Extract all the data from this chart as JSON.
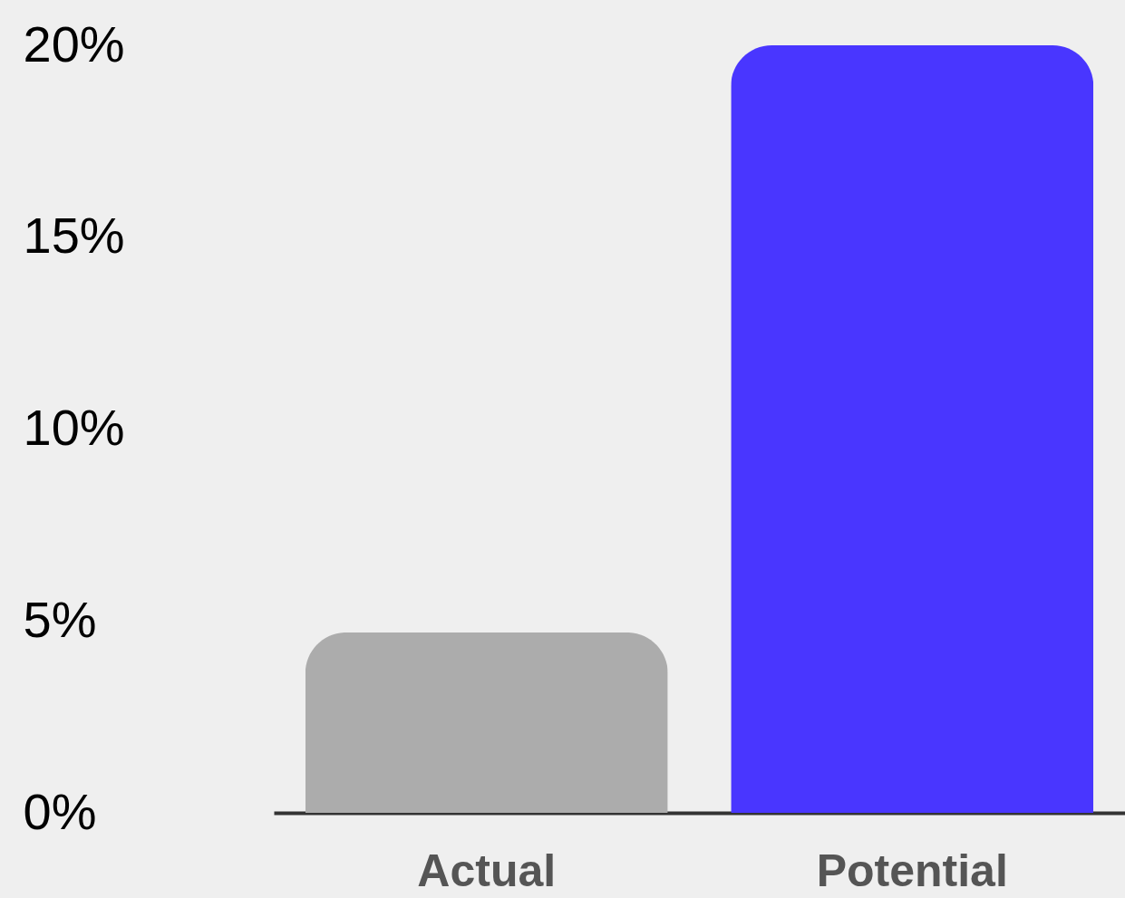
{
  "chart_data": {
    "type": "bar",
    "categories": [
      "Actual",
      "Potential"
    ],
    "values": [
      4.7,
      20
    ],
    "colors": [
      "#acacac",
      "#4936ff"
    ],
    "ylim": [
      0,
      20
    ],
    "yticks": [
      {
        "value": 0,
        "label": "0%"
      },
      {
        "value": 5,
        "label": "5%"
      },
      {
        "value": 10,
        "label": "10%"
      },
      {
        "value": 15,
        "label": "15%"
      },
      {
        "value": 20,
        "label": "20%"
      }
    ],
    "grid": false,
    "legend": false
  }
}
